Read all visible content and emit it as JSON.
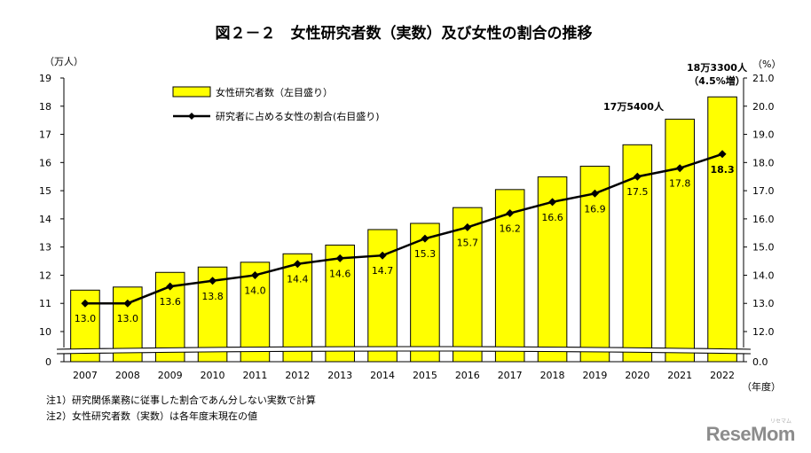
{
  "title": "図２－２　女性研究者数（実数）及び女性の割合の推移",
  "left_unit": "（万人）",
  "right_unit": "（%）",
  "x_unit": "（年度）",
  "legend": {
    "bars": "女性研究者数（左目盛り）",
    "line": "研究者に占める女性の割合(右目盛り)"
  },
  "annotations": {
    "a2021": "17万5400人",
    "a2022_line1": "18万3300人",
    "a2022_line2": "（4.5%増）"
  },
  "notes": [
    "注1）研究関係業務に従事した割合であん分しない実数で計算",
    "注2）女性研究者数（実数）は各年度末現在の値"
  ],
  "logo": {
    "main": "ReseMom",
    "sub": "リセマム"
  },
  "colors": {
    "bar": "#ffff00",
    "bar_stroke": "#000000",
    "line": "#000000",
    "axis": "#000000"
  },
  "chart_data": {
    "type": "bar",
    "categories": [
      "2007",
      "2008",
      "2009",
      "2010",
      "2011",
      "2012",
      "2013",
      "2014",
      "2015",
      "2016",
      "2017",
      "2018",
      "2019",
      "2020",
      "2021",
      "2022"
    ],
    "series": [
      {
        "name": "女性研究者数（左目盛り）",
        "type": "bar",
        "axis": "left",
        "values": [
          11.47,
          11.58,
          12.1,
          12.29,
          12.46,
          12.76,
          13.07,
          13.62,
          13.84,
          14.4,
          15.04,
          15.49,
          15.87,
          16.63,
          17.54,
          18.33
        ]
      },
      {
        "name": "研究者に占める女性の割合(右目盛り)",
        "type": "line",
        "axis": "right",
        "values": [
          13.0,
          13.0,
          13.6,
          13.8,
          14.0,
          14.4,
          14.6,
          14.7,
          15.3,
          15.7,
          16.2,
          16.6,
          16.9,
          17.5,
          17.8,
          18.3
        ],
        "labels": [
          "13.0",
          "13.0",
          "13.6",
          "13.8",
          "14.0",
          "14.4",
          "14.6",
          "14.7",
          "15.3",
          "15.7",
          "16.2",
          "16.6",
          "16.9",
          "17.5",
          "17.8",
          "18.3"
        ]
      }
    ],
    "left_axis": {
      "ticks": [
        "0",
        "10",
        "11",
        "12",
        "13",
        "14",
        "15",
        "16",
        "17",
        "18",
        "19"
      ],
      "range_shown": [
        10,
        19
      ],
      "broken": true
    },
    "right_axis": {
      "ticks": [
        "0.0",
        "12.0",
        "13.0",
        "14.0",
        "15.0",
        "16.0",
        "17.0",
        "18.0",
        "19.0",
        "20.0",
        "21.0"
      ],
      "range_shown": [
        12.0,
        21.0
      ],
      "broken": true
    },
    "grid": false,
    "legend_position": "top-left"
  }
}
